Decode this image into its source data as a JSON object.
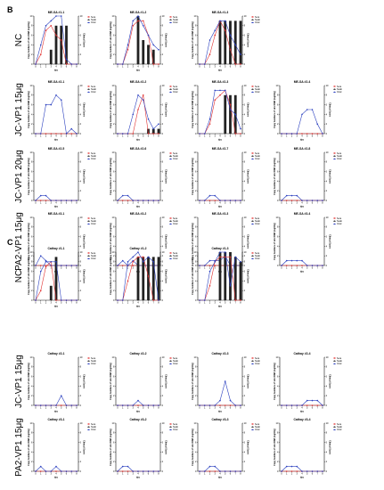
{
  "figure": {
    "panel_B": "B",
    "panel_C": "C"
  },
  "axes_text": {
    "xlabel": "dpc",
    "ylabel_left": "Copy numbers of viral RNA (log10/g)",
    "ylabel_right": "Clinical Score",
    "legend": [
      "Sera",
      "Swab",
      "Clcal"
    ]
  },
  "colors": {
    "sera": "#e03030",
    "swab": "#222222",
    "clinical": "#2a3fbf",
    "axis": "#111111"
  },
  "groups": [
    {
      "panel": "B",
      "label": "NC",
      "charts": [
        {
          "title": "ME-SA #1-1",
          "sera": [
            0,
            2,
            7,
            8,
            6,
            5,
            0,
            0,
            0
          ],
          "clinical": [
            0,
            4,
            8,
            9,
            10,
            10,
            1,
            0,
            0
          ],
          "swab_bars": [
            0,
            0,
            0,
            3,
            8,
            8,
            8,
            0,
            0
          ]
        },
        {
          "title": "ME-SA #1-2",
          "sera": [
            0,
            0,
            3,
            8,
            9,
            9,
            6,
            0,
            0
          ],
          "clinical": [
            0,
            0,
            4,
            9,
            10,
            8,
            6,
            4,
            3
          ],
          "swab_bars": [
            0,
            0,
            0,
            0,
            10,
            5,
            4,
            3,
            0
          ]
        },
        {
          "title": "ME-SA #1-3",
          "sera": [
            0,
            0,
            2,
            6,
            9,
            7,
            3,
            0,
            0
          ],
          "clinical": [
            0,
            0,
            5,
            7,
            9,
            9,
            6,
            4,
            2
          ],
          "swab_bars": [
            0,
            0,
            0,
            0,
            9,
            9,
            9,
            9,
            9
          ]
        }
      ]
    },
    {
      "panel": "B",
      "label": "JC-VP1 15μg",
      "charts": [
        {
          "title": "ME-SA #2-1",
          "sera": [
            0,
            0,
            0,
            0,
            0,
            0,
            0,
            0,
            0
          ],
          "clinical": [
            0,
            0,
            6,
            6,
            8,
            7,
            0,
            1,
            0
          ],
          "swab_bars": [
            0,
            0,
            0,
            0,
            0,
            0,
            0,
            0,
            0
          ]
        },
        {
          "title": "ME-SA #2-2",
          "sera": [
            0,
            0,
            0,
            0,
            5,
            8,
            0,
            0,
            0
          ],
          "clinical": [
            0,
            0,
            0,
            4,
            8,
            7,
            3,
            1,
            2
          ],
          "swab_bars": [
            0,
            0,
            0,
            0,
            0,
            0,
            1,
            1,
            1
          ]
        },
        {
          "title": "ME-SA #2-3",
          "sera": [
            0,
            0,
            2,
            7,
            8,
            9,
            6,
            0,
            0
          ],
          "clinical": [
            0,
            0,
            3,
            9,
            9,
            9,
            5,
            4,
            1
          ],
          "swab_bars": [
            0,
            0,
            0,
            0,
            0,
            8,
            8,
            8,
            0
          ]
        },
        {
          "title": "ME-SA #2-4",
          "sera": [
            0,
            0,
            0,
            0,
            0,
            0,
            0,
            0,
            0
          ],
          "clinical": [
            0,
            0,
            0,
            0,
            4,
            5,
            5,
            2,
            0
          ],
          "swab_bars": [
            0,
            0,
            0,
            0,
            0,
            0,
            0,
            0,
            0
          ]
        }
      ]
    },
    {
      "panel": "B",
      "label": "JC-VP1 20μg",
      "charts": [
        {
          "title": "ME-SA #2-5",
          "sera": [
            0,
            0,
            0,
            0,
            0,
            0,
            0,
            0,
            0
          ],
          "clinical": [
            0,
            1,
            1,
            0,
            0,
            0,
            0,
            0,
            0
          ],
          "swab_bars": [
            0,
            0,
            0,
            0,
            0,
            0,
            0,
            0,
            0
          ]
        },
        {
          "title": "ME-SA #2-6",
          "sera": [
            0,
            0,
            0,
            0,
            0,
            0,
            0,
            0,
            0
          ],
          "clinical": [
            0,
            1,
            1,
            0,
            0,
            0,
            0,
            0,
            0
          ],
          "swab_bars": [
            0,
            0,
            0,
            0,
            0,
            0,
            0,
            0,
            0
          ]
        },
        {
          "title": "ME-SA #2-7",
          "sera": [
            0,
            0,
            0,
            0,
            0,
            0,
            0,
            0,
            0
          ],
          "clinical": [
            0,
            0,
            1,
            1,
            0,
            0,
            0,
            0,
            0
          ],
          "swab_bars": [
            0,
            0,
            0,
            0,
            0,
            0,
            0,
            0,
            0
          ]
        },
        {
          "title": "ME-SA #2-8",
          "sera": [
            0,
            0,
            0,
            0,
            0,
            0,
            0,
            0,
            0
          ],
          "clinical": [
            0,
            1,
            1,
            1,
            0,
            0,
            0,
            0,
            0
          ],
          "swab_bars": [
            0,
            0,
            0,
            0,
            0,
            0,
            0,
            0,
            0
          ]
        }
      ]
    },
    {
      "panel": "B",
      "label": "PA2-VP1 15μg",
      "charts": [
        {
          "title": "ME-SA #3-1",
          "sera": [
            0,
            0,
            0,
            0,
            0,
            0,
            0,
            0,
            0
          ],
          "clinical": [
            0,
            2,
            1,
            0,
            0,
            0,
            0,
            0,
            0
          ],
          "swab_bars": [
            0,
            0,
            0,
            0,
            0,
            0,
            0,
            0,
            0
          ]
        },
        {
          "title": "ME-SA #3-2",
          "sera": [
            0,
            0,
            0,
            0,
            0,
            0,
            0,
            0,
            0
          ],
          "clinical": [
            0,
            1,
            0,
            1,
            0,
            0,
            0,
            0,
            0
          ],
          "swab_bars": [
            0,
            0,
            0,
            0,
            0,
            0,
            0,
            0,
            0
          ]
        },
        {
          "title": "ME-SA #3-3",
          "sera": [
            0,
            0,
            0,
            0,
            0,
            0,
            0,
            0,
            0
          ],
          "clinical": [
            0,
            0,
            1,
            1,
            1,
            2,
            0,
            0,
            0
          ],
          "swab_bars": [
            0,
            0,
            0,
            0,
            0,
            0,
            0,
            0,
            0
          ]
        },
        {
          "title": "ME-SA #3-4",
          "sera": [
            0,
            0,
            0,
            0,
            0,
            0,
            0,
            0,
            0
          ],
          "clinical": [
            0,
            1,
            1,
            1,
            1,
            0,
            0,
            0,
            0
          ],
          "swab_bars": [
            0,
            0,
            0,
            0,
            0,
            0,
            0,
            0,
            0
          ]
        }
      ]
    },
    {
      "panel": "C",
      "label": "NC",
      "charts": [
        {
          "title": "Cathay #1-1",
          "sera": [
            0,
            2,
            7,
            8,
            0,
            0,
            0,
            0,
            0
          ],
          "clinical": [
            0,
            6,
            8,
            8,
            8,
            0,
            0,
            0,
            0
          ],
          "swab_bars": [
            0,
            0,
            0,
            3,
            9,
            0,
            0,
            0,
            0
          ]
        },
        {
          "title": "Cathay #1-2",
          "sera": [
            0,
            0,
            4,
            8,
            9,
            9,
            5,
            0,
            0
          ],
          "clinical": [
            0,
            0,
            8,
            9,
            10,
            8,
            9,
            8,
            0
          ],
          "swab_bars": [
            0,
            0,
            0,
            0,
            9,
            9,
            9,
            9,
            9
          ]
        },
        {
          "title": "Cathay #1-3",
          "sera": [
            0,
            0,
            3,
            8,
            9,
            9,
            9,
            0,
            0
          ],
          "clinical": [
            0,
            0,
            6,
            8,
            10,
            10,
            3,
            9,
            8
          ],
          "swab_bars": [
            0,
            0,
            0,
            0,
            10,
            10,
            10,
            9,
            8
          ]
        }
      ]
    },
    {
      "panel": "C",
      "label": "JC-VP1 15μg",
      "charts": [
        {
          "title": "Cathay #2-1",
          "sera": [
            0,
            0,
            0,
            0,
            0,
            0,
            0,
            0,
            0
          ],
          "clinical": [
            0,
            0,
            0,
            0,
            0,
            2,
            0,
            0,
            0
          ],
          "swab_bars": [
            0,
            0,
            0,
            0,
            0,
            0,
            0,
            0,
            0
          ]
        },
        {
          "title": "Cathay #2-2",
          "sera": [
            0,
            0,
            0,
            0,
            0,
            0,
            0,
            0,
            0
          ],
          "clinical": [
            0,
            0,
            0,
            0,
            1,
            0,
            0,
            0,
            0
          ],
          "swab_bars": [
            0,
            0,
            0,
            0,
            0,
            0,
            0,
            0,
            0
          ]
        },
        {
          "title": "Cathay #2-3",
          "sera": [
            0,
            0,
            0,
            0,
            0,
            0,
            0,
            0,
            0
          ],
          "clinical": [
            0,
            0,
            0,
            0,
            1,
            5,
            1,
            0,
            0
          ],
          "swab_bars": [
            0,
            0,
            0,
            0,
            0,
            0,
            0,
            0,
            0
          ]
        },
        {
          "title": "Cathay #2-4",
          "sera": [
            0,
            0,
            0,
            0,
            0,
            0,
            0,
            0,
            0
          ],
          "clinical": [
            0,
            0,
            0,
            0,
            0,
            1,
            1,
            1,
            0
          ],
          "swab_bars": [
            0,
            0,
            0,
            0,
            0,
            0,
            0,
            0,
            0
          ]
        }
      ]
    },
    {
      "panel": "C",
      "label": "PA2-VP1 15μg",
      "charts": [
        {
          "title": "Cathay #3-1",
          "sera": [
            0,
            0,
            0,
            0,
            0,
            0,
            0,
            0,
            0
          ],
          "clinical": [
            0,
            1,
            0,
            0,
            1,
            0,
            0,
            0,
            0
          ],
          "swab_bars": [
            0,
            0,
            0,
            0,
            0,
            0,
            0,
            0,
            0
          ]
        },
        {
          "title": "Cathay #3-2",
          "sera": [
            0,
            0,
            0,
            0,
            0,
            0,
            0,
            0,
            0
          ],
          "clinical": [
            0,
            1,
            1,
            0,
            0,
            0,
            0,
            0,
            0
          ],
          "swab_bars": [
            0,
            0,
            0,
            0,
            0,
            0,
            0,
            0,
            0
          ]
        },
        {
          "title": "Cathay #3-3",
          "sera": [
            0,
            0,
            0,
            0,
            0,
            0,
            0,
            0,
            0
          ],
          "clinical": [
            0,
            0,
            1,
            1,
            0,
            0,
            0,
            0,
            0
          ],
          "swab_bars": [
            0,
            0,
            0,
            0,
            0,
            0,
            0,
            0,
            0
          ]
        },
        {
          "title": "Cathay #3-4",
          "sera": [
            0,
            0,
            0,
            0,
            0,
            0,
            0,
            0,
            0
          ],
          "clinical": [
            0,
            1,
            1,
            1,
            0,
            0,
            0,
            0,
            0
          ],
          "swab_bars": [
            0,
            0,
            0,
            0,
            0,
            0,
            0,
            0,
            0
          ]
        }
      ]
    }
  ],
  "chart_data": {
    "type": "bar",
    "x": [
      0,
      1,
      2,
      3,
      4,
      5,
      6,
      7,
      8
    ],
    "xlabel": "dpc",
    "ylabel": "Copy numbers of viral RNA (log10/g)",
    "ylabel_right": "Clinical Score",
    "ylim": [
      0,
      10
    ],
    "ylim_right": [
      0,
      10
    ],
    "series_names": [
      "Sera",
      "Swab",
      "Clcal"
    ],
    "legend": "top-right",
    "grid": false
  }
}
